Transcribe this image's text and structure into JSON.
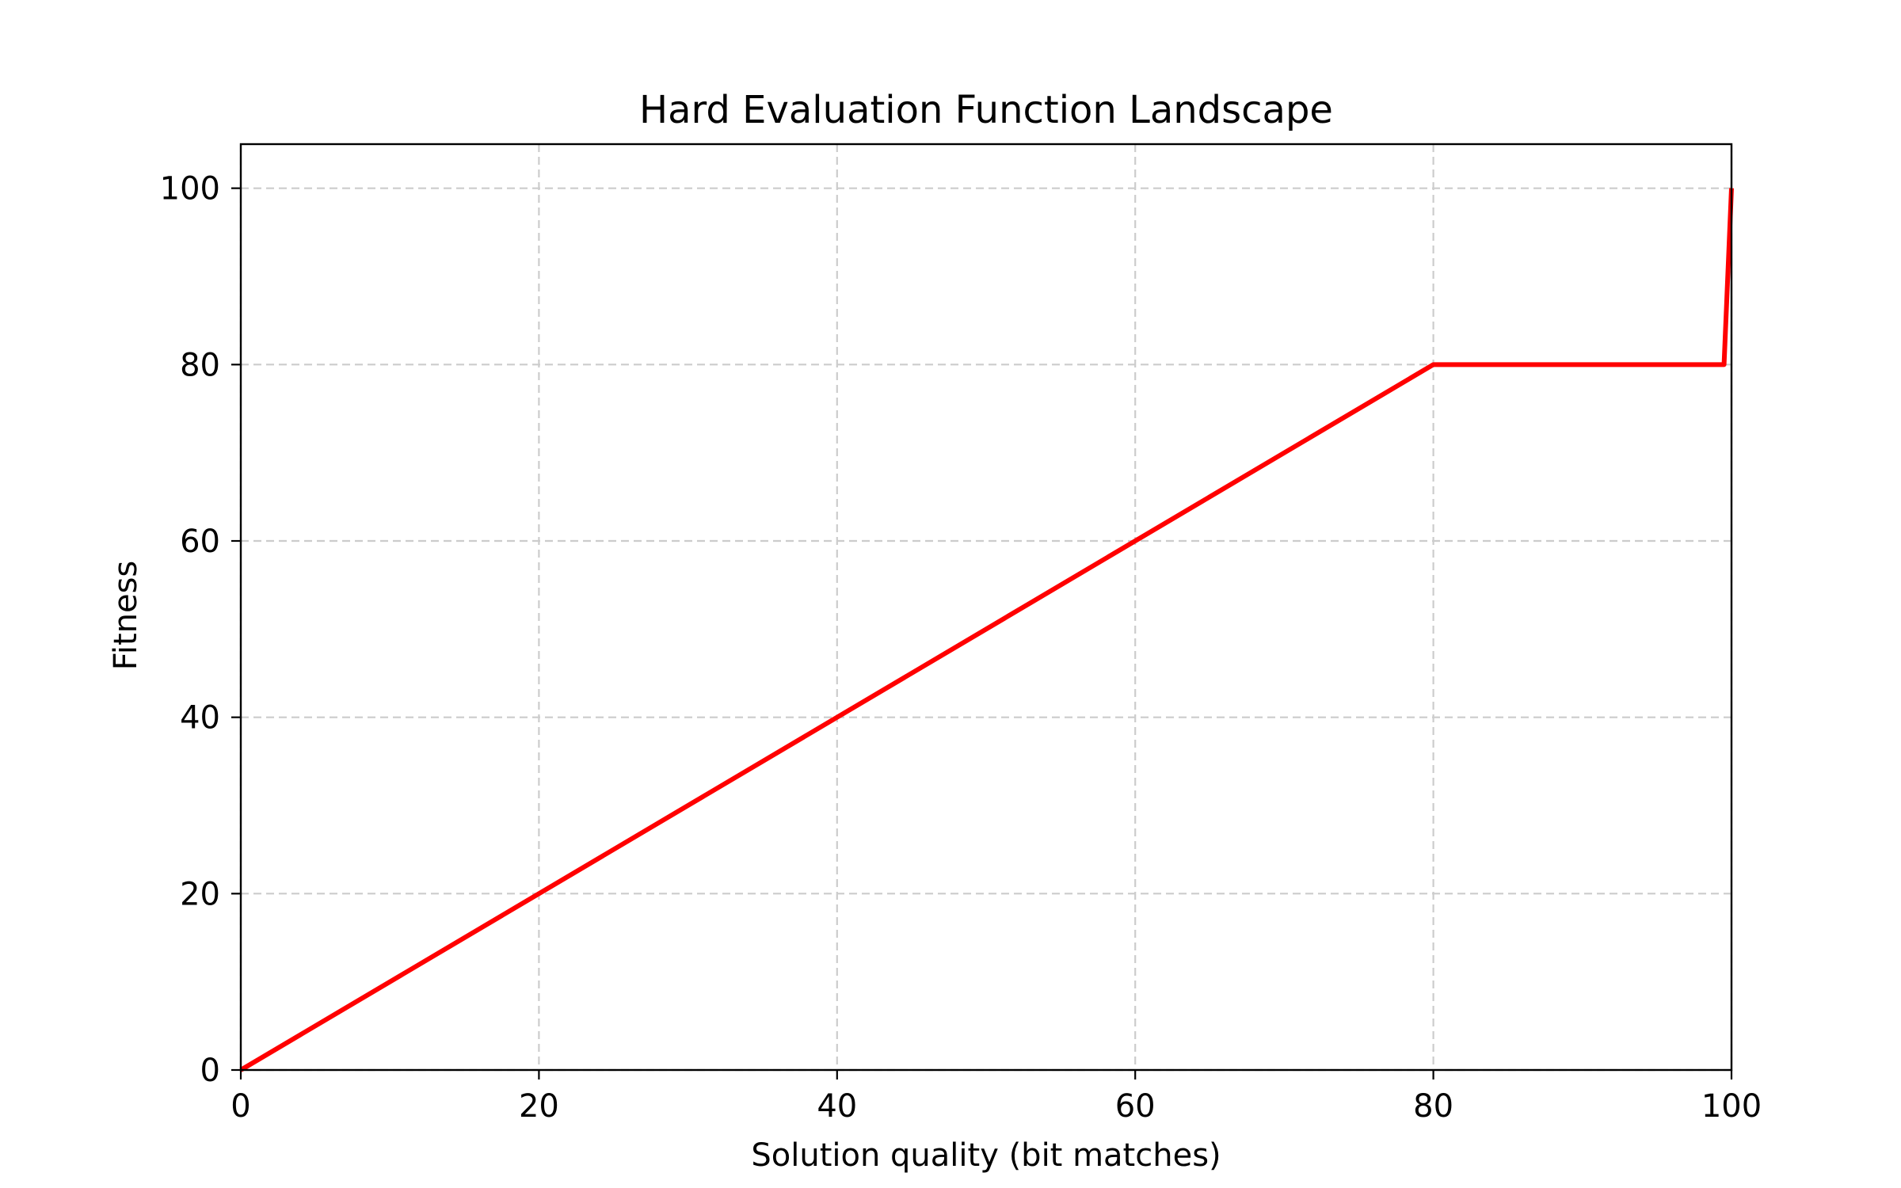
{
  "chart_data": {
    "type": "line",
    "title": "Hard Evaluation Function Landscape",
    "xlabel": "Solution quality (bit matches)",
    "ylabel": "Fitness",
    "xlim": [
      0,
      100
    ],
    "ylim": [
      0,
      105
    ],
    "xticks": [
      0,
      20,
      40,
      60,
      80,
      100
    ],
    "yticks": [
      0,
      20,
      40,
      60,
      80,
      100
    ],
    "grid": true,
    "grid_style": "dashed",
    "legend": false,
    "series": [
      {
        "color": "#ff0000",
        "x": [
          0,
          80,
          99.5,
          100
        ],
        "y": [
          0,
          80,
          80,
          100
        ]
      }
    ]
  },
  "colors": {
    "line": "#ff0000",
    "grid": "#cccccc",
    "axis": "#000000",
    "background": "#ffffff"
  }
}
